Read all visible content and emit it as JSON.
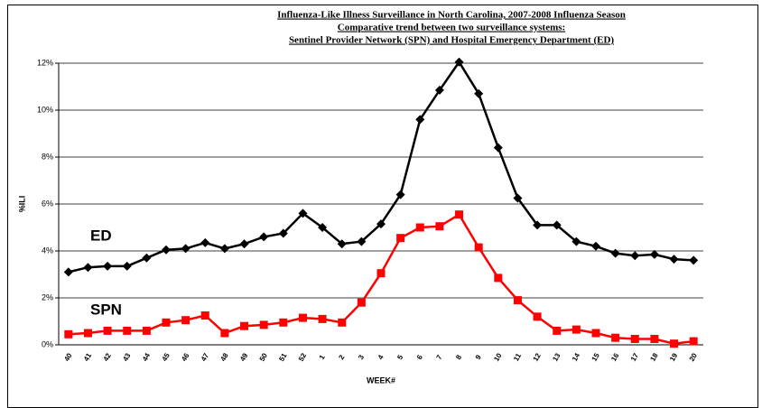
{
  "chart_data": {
    "type": "line",
    "title": [
      "Influenza-Like Illness Surveillance in North Carolina, 2007-2008 Influenza Season",
      "Comparative trend between two surveillance systems:",
      "Sentinel Provider Network (SPN) and Hospital Emergency Department (ED)"
    ],
    "x_label": "WEEK#",
    "y_label": "%ILI",
    "categories": [
      "40",
      "41",
      "42",
      "43",
      "44",
      "45",
      "46",
      "47",
      "48",
      "49",
      "50",
      "51",
      "52",
      "1",
      "2",
      "3",
      "4",
      "5",
      "6",
      "7",
      "8",
      "9",
      "10",
      "11",
      "12",
      "13",
      "14",
      "15",
      "16",
      "17",
      "18",
      "19",
      "20"
    ],
    "series": [
      {
        "name": "ED",
        "color": "#000000",
        "marker": "diamond",
        "values": [
          3.1,
          3.3,
          3.35,
          3.35,
          3.7,
          4.05,
          4.1,
          4.35,
          4.1,
          4.3,
          4.6,
          4.75,
          5.6,
          5.0,
          4.3,
          4.4,
          5.15,
          6.4,
          9.6,
          10.85,
          12.05,
          10.7,
          8.4,
          6.25,
          5.1,
          5.1,
          4.4,
          4.2,
          3.9,
          3.8,
          3.85,
          3.65,
          3.6
        ]
      },
      {
        "name": "SPN",
        "color": "#ff0000",
        "marker": "square",
        "values": [
          0.45,
          0.5,
          0.6,
          0.6,
          0.6,
          0.95,
          1.05,
          1.25,
          0.5,
          0.8,
          0.85,
          0.95,
          1.15,
          1.1,
          0.95,
          1.8,
          3.05,
          4.55,
          5.0,
          5.05,
          5.55,
          4.15,
          2.85,
          1.9,
          1.2,
          0.6,
          0.65,
          0.5,
          0.3,
          0.25,
          0.25,
          0.05,
          0.15
        ]
      }
    ],
    "ylim": [
      0,
      12
    ],
    "yticks": [
      {
        "value": 0,
        "label": "0%"
      },
      {
        "value": 2,
        "label": "2%"
      },
      {
        "value": 4,
        "label": "4%"
      },
      {
        "value": 6,
        "label": "6%"
      },
      {
        "value": 8,
        "label": "8%"
      },
      {
        "value": 10,
        "label": "10%"
      },
      {
        "value": 12,
        "label": "12%"
      }
    ],
    "grid": true
  }
}
